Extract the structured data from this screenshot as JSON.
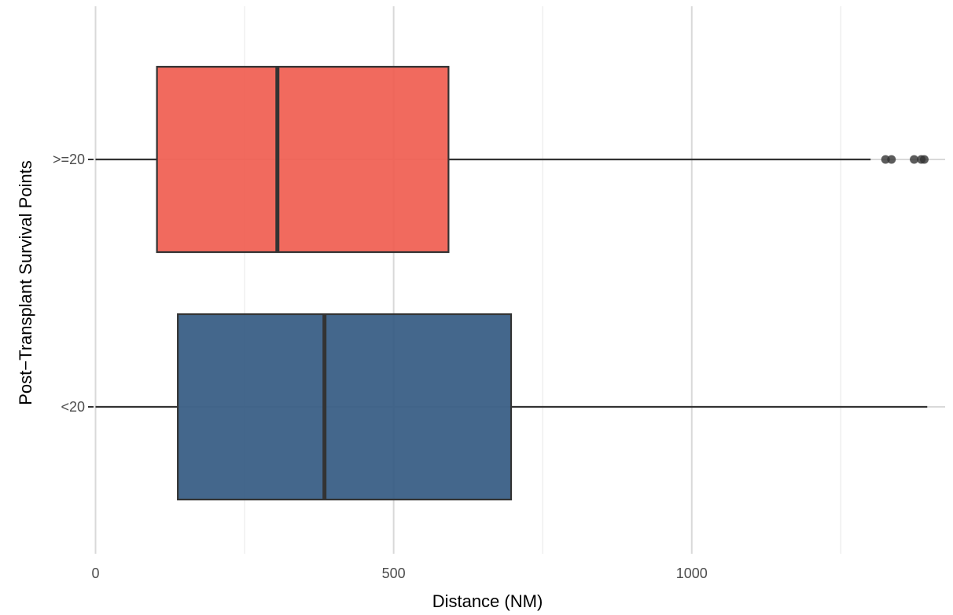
{
  "chart_data": {
    "type": "boxplot",
    "orientation": "horizontal",
    "title": "",
    "xlabel": "Distance (NM)",
    "ylabel": "Post−Transplant Survival Points",
    "xlim": [
      -2,
      1425
    ],
    "x_ticks": [
      0,
      500,
      1000
    ],
    "x_tick_labels": [
      "0",
      "500",
      "1000"
    ],
    "grid": true,
    "legend": "none",
    "categories": [
      ">=20",
      "<20"
    ],
    "series": [
      {
        "category": ">=20",
        "color": "#ef5a4c",
        "whisker_low": 0,
        "q1": 103,
        "median": 305,
        "q3": 592,
        "whisker_high": 1300,
        "outliers": [
          1325,
          1335,
          1373,
          1385,
          1390
        ]
      },
      {
        "category": "<20",
        "color": "#30577f",
        "whisker_low": 0,
        "q1": 138,
        "median": 384,
        "q3": 697,
        "whisker_high": 1395,
        "outliers": []
      }
    ]
  }
}
